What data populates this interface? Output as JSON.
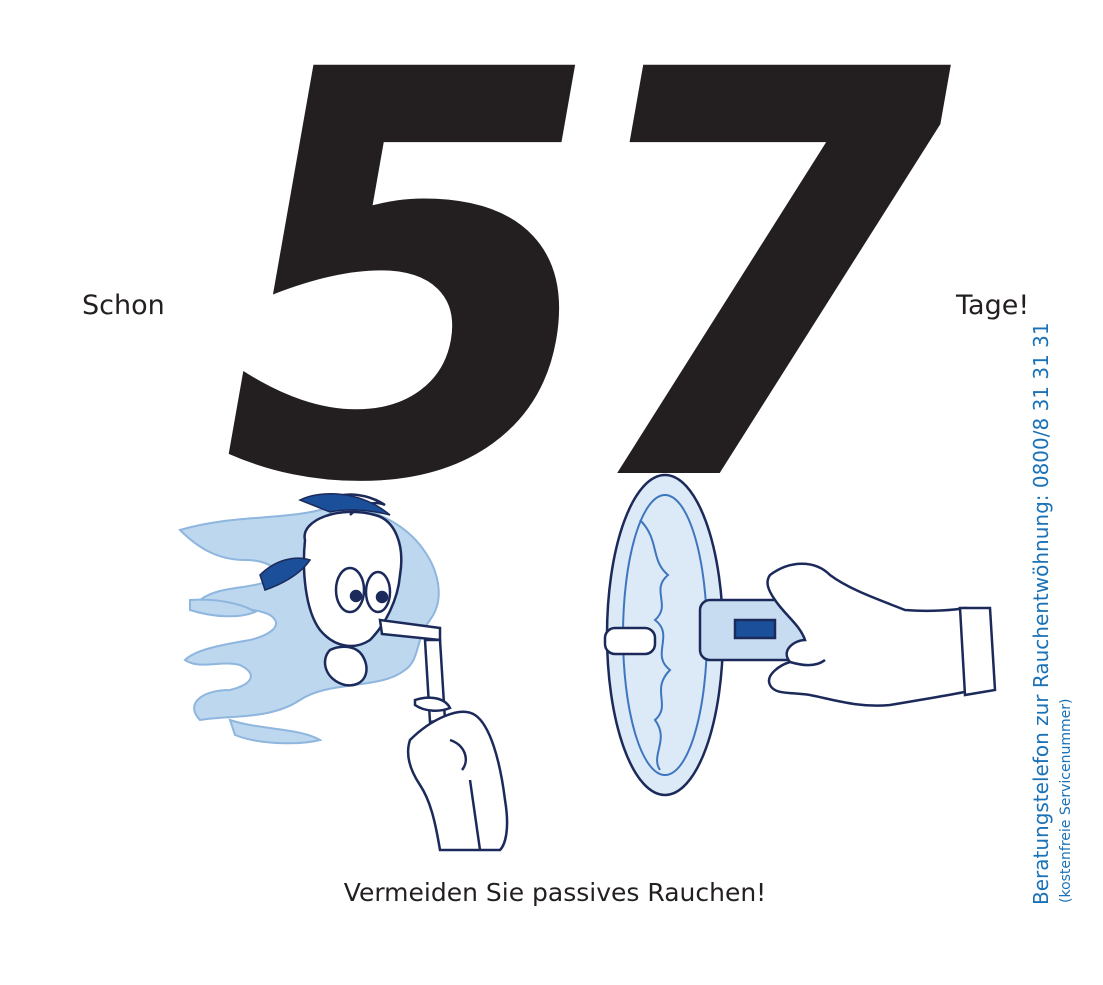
{
  "headline": {
    "prefix": "Schon",
    "number": "57",
    "suffix": "Tage!"
  },
  "caption": "Vermeiden Sie passives Rauchen!",
  "hotline": {
    "text": "Beratungstelefon zur Rauchentwöhnung: 0800/8 31 31 31",
    "note": "(kostenfreie Servicenummer)"
  },
  "colors": {
    "text": "#231f20",
    "accent": "#1a72b8",
    "smoke": "#bcd7ee",
    "ink": "#1b2a5a"
  },
  "illustration": {
    "left": "smoker-in-smoke-cloud",
    "right": "hand-holding-fan"
  }
}
